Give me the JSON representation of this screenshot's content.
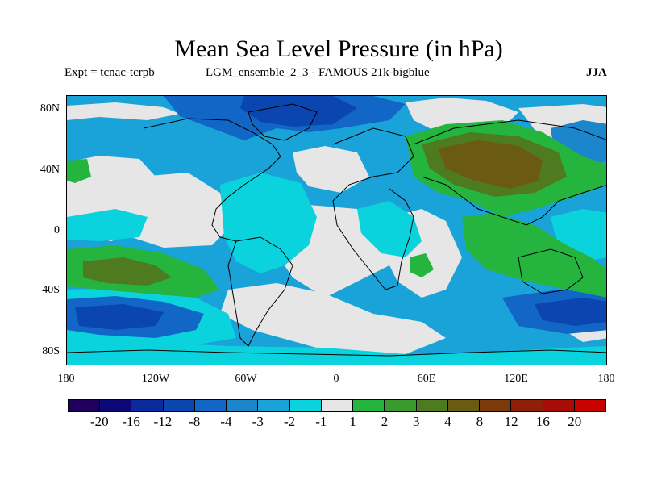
{
  "title": "Mean Sea Level Pressure (in hPa)",
  "expt": "Expt = tcnac-tcrpb",
  "ensemble": "LGM_ensemble_2_3 - FAMOUS 21k-bigblue",
  "season": "JJA",
  "lat_labels": [
    "80N",
    "40N",
    "0",
    "40S",
    "80S"
  ],
  "lon_labels": [
    "180",
    "120W",
    "60W",
    "0",
    "60E",
    "120E",
    "180"
  ],
  "colorbar": {
    "colors": [
      "#1f005e",
      "#0c0877",
      "#0b2a9e",
      "#0b45b0",
      "#1266c5",
      "#1c86cc",
      "#1aa3d8",
      "#0bd3dd",
      "#e6e6e6",
      "#25b53e",
      "#3b9a2e",
      "#4e7a20",
      "#6a5a12",
      "#7a3a0c",
      "#8f1f08",
      "#a80c06",
      "#c80000"
    ],
    "labels": [
      "-20",
      "-16",
      "-12",
      "-8",
      "-4",
      "-3",
      "-2",
      "-1",
      "1",
      "2",
      "3",
      "4",
      "8",
      "12",
      "16",
      "20"
    ]
  },
  "map_colors": {
    "ocean_base": "#1aa3d8",
    "neutral": "#e6e6e6",
    "light_blue": "#0bd3dd",
    "mid_blue": "#1c86cc",
    "deep_blue": "#1266c5",
    "darker_blue": "#0b45b0",
    "green": "#25b53e",
    "dark_green": "#3b9a2e",
    "olive": "#4e7a20",
    "brown": "#6a5a12"
  }
}
